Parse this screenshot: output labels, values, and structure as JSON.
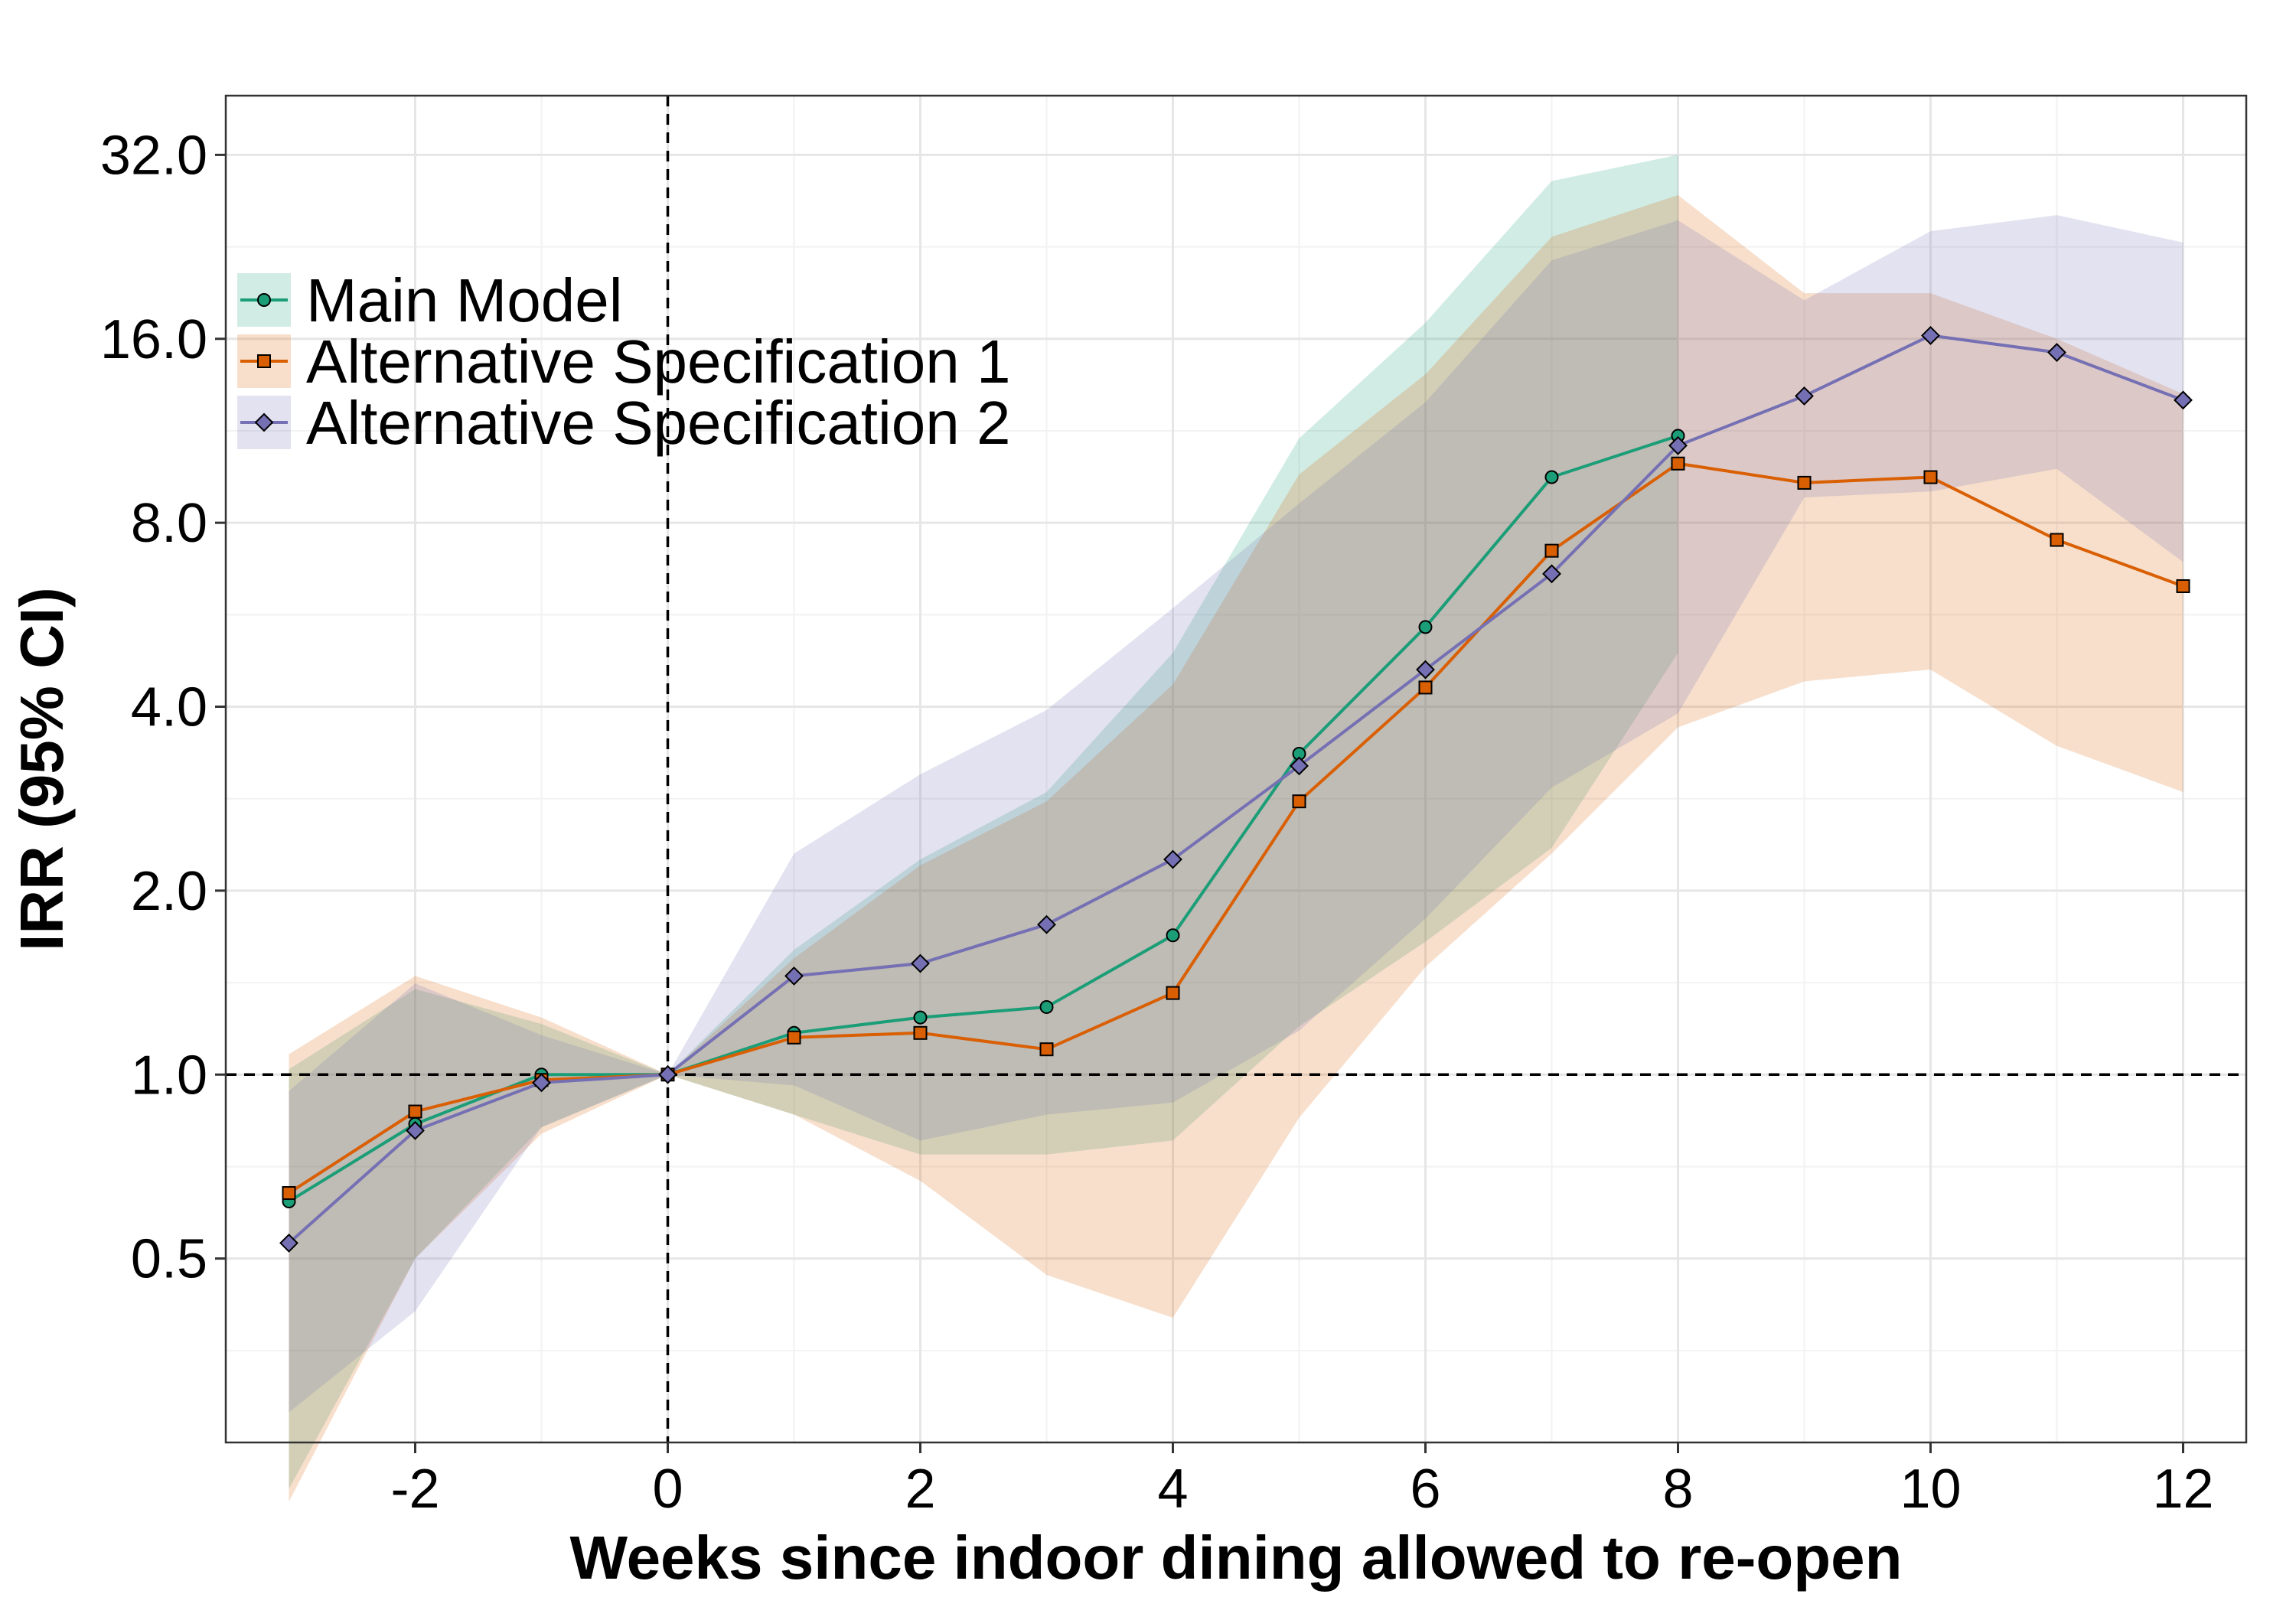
{
  "chart_data": {
    "type": "line",
    "title": "",
    "xlabel": "Weeks since indoor dining allowed to re-open",
    "ylabel": "IRR (95% CI)",
    "x_scale": "linear",
    "y_scale": "log2",
    "xlim": [
      -3.5,
      12.5
    ],
    "ylim": [
      0.25,
      40
    ],
    "x_ticks": [
      -2,
      0,
      2,
      4,
      6,
      8,
      10,
      12
    ],
    "x_tick_labels": [
      "-2",
      "0",
      "2",
      "4",
      "6",
      "8",
      "10",
      "12"
    ],
    "y_ticks": [
      0.5,
      1,
      2,
      4,
      8,
      16,
      32
    ],
    "y_tick_labels": [
      "0.5",
      "1.0",
      "2.0",
      "4.0",
      "8.0",
      "16.0",
      "32.0"
    ],
    "grid": true,
    "reference_lines": [
      {
        "axis": "y",
        "value": 1.0,
        "style": "dashed"
      },
      {
        "axis": "x",
        "value": 0,
        "style": "dashed"
      }
    ],
    "legend_position": "top-left",
    "series": [
      {
        "name": "Main Model",
        "color": "#1b9e77",
        "marker": "circle",
        "x": [
          -3,
          -2,
          -1,
          0,
          1,
          2,
          3,
          4,
          5,
          6,
          7,
          8
        ],
        "y": [
          0.62,
          0.83,
          1.0,
          1.0,
          1.17,
          1.24,
          1.29,
          1.69,
          3.35,
          5.4,
          9.5,
          11.1
        ],
        "ci_lower": [
          0.21,
          0.5,
          0.82,
          1.0,
          0.86,
          0.74,
          0.74,
          0.78,
          1.2,
          1.65,
          2.35,
          4.9
        ],
        "ci_upper": [
          1.02,
          1.38,
          1.21,
          1.0,
          1.6,
          2.25,
          2.9,
          4.9,
          11.0,
          17.0,
          29.0,
          32.0
        ]
      },
      {
        "name": "Alternative Specification 1",
        "color": "#d95f02",
        "marker": "square",
        "x": [
          -3,
          -2,
          -1,
          0,
          1,
          2,
          3,
          4,
          5,
          6,
          7,
          8,
          9,
          10,
          11,
          12
        ],
        "y": [
          0.64,
          0.87,
          0.98,
          1.0,
          1.15,
          1.17,
          1.1,
          1.36,
          2.8,
          4.3,
          7.2,
          10.0,
          9.3,
          9.5,
          7.5,
          6.3
        ],
        "ci_lower": [
          0.2,
          0.5,
          0.8,
          1.0,
          0.86,
          0.67,
          0.47,
          0.4,
          0.85,
          1.5,
          2.3,
          3.7,
          4.4,
          4.6,
          3.45,
          2.9
        ],
        "ci_upper": [
          1.08,
          1.45,
          1.24,
          1.0,
          1.55,
          2.2,
          2.8,
          4.35,
          9.6,
          14.0,
          23.5,
          27.5,
          19.0,
          19.0,
          16.0,
          13.0
        ]
      },
      {
        "name": "Alternative Specification 2",
        "color": "#7570b3",
        "marker": "diamond",
        "x": [
          -3,
          -2,
          -1,
          0,
          1,
          2,
          3,
          4,
          5,
          6,
          7,
          8,
          9,
          10,
          11,
          12
        ],
        "y": [
          0.53,
          0.81,
          0.97,
          1.0,
          1.45,
          1.52,
          1.76,
          2.25,
          3.2,
          4.6,
          6.6,
          10.7,
          12.9,
          16.2,
          15.2,
          12.7
        ],
        "ci_lower": [
          0.28,
          0.41,
          0.82,
          1.0,
          0.96,
          0.78,
          0.86,
          0.9,
          1.18,
          1.8,
          2.95,
          3.9,
          8.8,
          9.0,
          9.8,
          6.9
        ],
        "ci_upper": [
          0.94,
          1.41,
          1.16,
          1.0,
          2.3,
          3.1,
          3.95,
          5.8,
          8.6,
          12.6,
          21.5,
          25.0,
          18.5,
          24.0,
          25.5,
          23.0
        ]
      }
    ]
  }
}
